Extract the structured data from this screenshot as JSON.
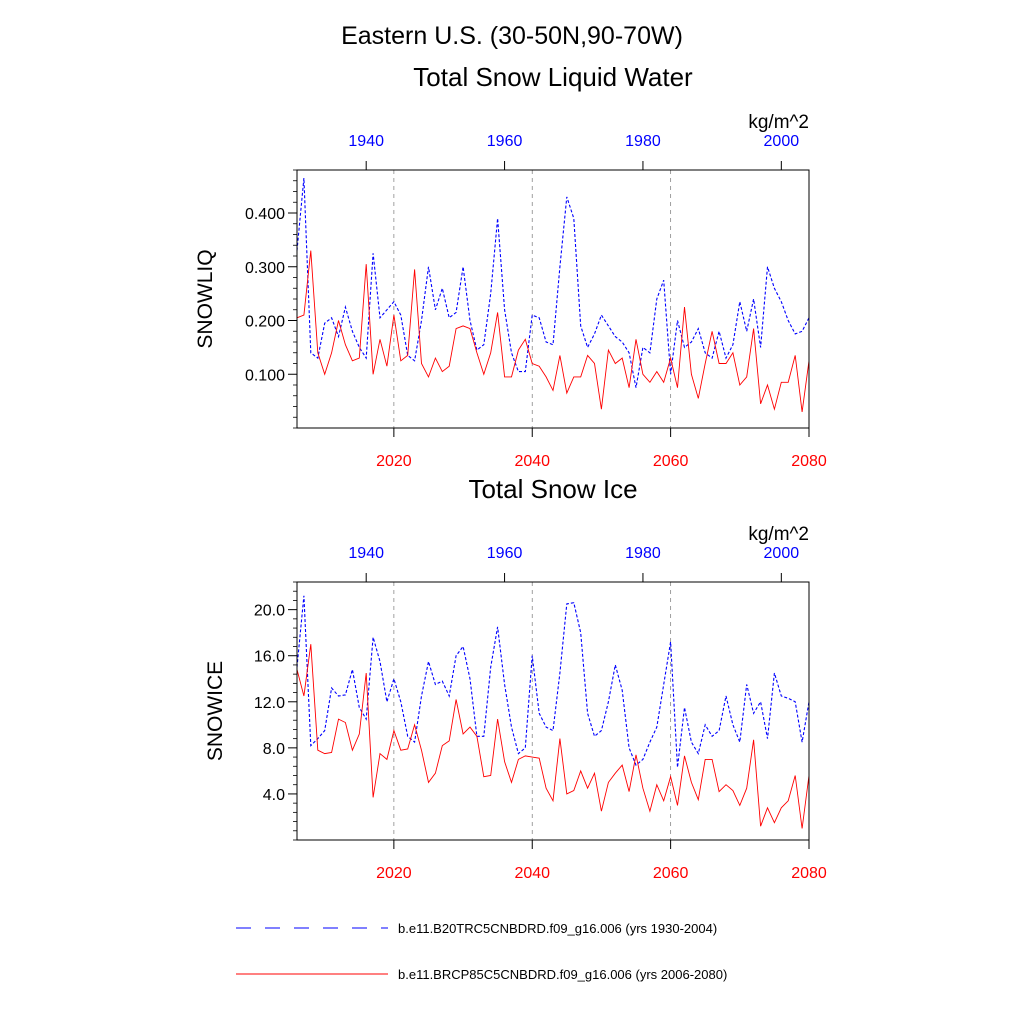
{
  "header": {
    "title": "Eastern U.S. (30-50N,90-70W)"
  },
  "legend": {
    "position": "bottom",
    "entries": [
      {
        "label": "b.e11.B20TRC5CNBDRD.f09_g16.006 (yrs 1930-2004)",
        "color": "#0000ff",
        "style": "dashed"
      },
      {
        "label": "b.e11.BRCP85C5CNBDRD.f09_g16.006 (yrs 2006-2080)",
        "color": "#ff0000",
        "style": "solid"
      }
    ]
  },
  "colors": {
    "top_axis": "#0000ff",
    "bottom_axis": "#ff0000",
    "grid": "#888888"
  },
  "chart_data": [
    {
      "type": "line",
      "title": "Total Snow Liquid Water",
      "units": "kg/m^2",
      "ylabel": "SNOWLIQ",
      "ylim": [
        0.0,
        0.48
      ],
      "yticks": [
        0.1,
        0.2,
        0.3,
        0.4
      ],
      "ytick_labels": [
        "0.100",
        "0.200",
        "0.300",
        "0.400"
      ],
      "x_bottom": {
        "range": [
          2006,
          2080
        ],
        "ticks": [
          2020,
          2040,
          2060,
          2080
        ],
        "labels": [
          "2020",
          "2040",
          "2060",
          "2080"
        ]
      },
      "x_top": {
        "range": [
          1930,
          2004
        ],
        "ticks": [
          1940,
          1960,
          1980,
          2000
        ],
        "labels": [
          "1940",
          "1960",
          "1980",
          "2000"
        ]
      },
      "grid": "vertical dashed at bottom-axis ticks",
      "series": [
        {
          "name": "b.e11.B20TRC5CNBDRD.f09_g16.006 (yrs 1930-2004)",
          "axis": "top",
          "style": "dashed",
          "color": "#0000ff",
          "values": [
            0.33,
            0.465,
            0.14,
            0.13,
            0.195,
            0.205,
            0.17,
            0.225,
            0.18,
            0.15,
            0.13,
            0.325,
            0.205,
            0.22,
            0.235,
            0.21,
            0.135,
            0.125,
            0.2,
            0.3,
            0.22,
            0.26,
            0.205,
            0.215,
            0.3,
            0.2,
            0.145,
            0.155,
            0.25,
            0.39,
            0.22,
            0.14,
            0.105,
            0.105,
            0.21,
            0.205,
            0.16,
            0.155,
            0.3,
            0.43,
            0.39,
            0.19,
            0.15,
            0.175,
            0.21,
            0.19,
            0.17,
            0.16,
            0.14,
            0.075,
            0.15,
            0.14,
            0.24,
            0.275,
            0.1,
            0.2,
            0.15,
            0.16,
            0.185,
            0.14,
            0.13,
            0.18,
            0.13,
            0.155,
            0.235,
            0.18,
            0.24,
            0.15,
            0.3,
            0.26,
            0.235,
            0.2,
            0.175,
            0.18,
            0.205
          ]
        },
        {
          "name": "b.e11.BRCP85C5CNBDRD.f09_g16.006 (yrs 2006-2080)",
          "axis": "bottom",
          "style": "solid",
          "color": "#ff0000",
          "values": [
            0.205,
            0.21,
            0.33,
            0.14,
            0.1,
            0.14,
            0.2,
            0.155,
            0.125,
            0.13,
            0.305,
            0.1,
            0.165,
            0.115,
            0.21,
            0.125,
            0.135,
            0.295,
            0.12,
            0.095,
            0.13,
            0.105,
            0.115,
            0.185,
            0.19,
            0.185,
            0.14,
            0.1,
            0.14,
            0.215,
            0.095,
            0.095,
            0.145,
            0.165,
            0.12,
            0.115,
            0.095,
            0.07,
            0.135,
            0.065,
            0.095,
            0.095,
            0.135,
            0.12,
            0.035,
            0.145,
            0.12,
            0.13,
            0.075,
            0.165,
            0.1,
            0.085,
            0.105,
            0.085,
            0.13,
            0.075,
            0.225,
            0.1,
            0.055,
            0.12,
            0.18,
            0.12,
            0.12,
            0.14,
            0.08,
            0.095,
            0.185,
            0.045,
            0.08,
            0.035,
            0.085,
            0.085,
            0.135,
            0.03,
            0.125
          ]
        }
      ]
    },
    {
      "type": "line",
      "title": "Total Snow Ice",
      "units": "kg/m^2",
      "ylabel": "SNOWICE",
      "ylim": [
        0.0,
        22.4
      ],
      "yticks": [
        4.0,
        8.0,
        12.0,
        16.0,
        20.0
      ],
      "ytick_labels": [
        "4.0",
        "8.0",
        "12.0",
        "16.0",
        "20.0"
      ],
      "x_bottom": {
        "range": [
          2006,
          2080
        ],
        "ticks": [
          2020,
          2040,
          2060,
          2080
        ],
        "labels": [
          "2020",
          "2040",
          "2060",
          "2080"
        ]
      },
      "x_top": {
        "range": [
          1930,
          2004
        ],
        "ticks": [
          1940,
          1960,
          1980,
          2000
        ],
        "labels": [
          "1940",
          "1960",
          "1980",
          "2000"
        ]
      },
      "grid": "vertical dashed at bottom-axis ticks",
      "series": [
        {
          "name": "b.e11.B20TRC5CNBDRD.f09_g16.006 (yrs 1930-2004)",
          "axis": "top",
          "style": "dashed",
          "color": "#0000ff",
          "values": [
            15.0,
            21.2,
            8.2,
            8.8,
            9.5,
            13.2,
            12.5,
            12.6,
            14.8,
            11.5,
            10.5,
            17.6,
            15.5,
            12.0,
            14.0,
            12.0,
            9.0,
            8.5,
            12.5,
            15.5,
            13.5,
            13.8,
            12.5,
            16.0,
            16.8,
            14.0,
            9.0,
            9.0,
            15.0,
            18.5,
            13.5,
            9.8,
            7.5,
            8.0,
            16.0,
            11.0,
            9.8,
            9.5,
            14.5,
            20.5,
            20.6,
            18.0,
            11.0,
            9.0,
            9.5,
            12.0,
            15.2,
            13.0,
            8.0,
            6.5,
            7.0,
            8.5,
            9.8,
            13.5,
            17.2,
            6.3,
            11.5,
            8.5,
            7.5,
            10.0,
            9.0,
            9.5,
            12.5,
            10.0,
            8.5,
            13.5,
            11.0,
            12.0,
            8.8,
            14.5,
            12.5,
            12.3,
            12.0,
            8.5,
            12.0
          ]
        },
        {
          "name": "b.e11.BRCP85C5CNBDRD.f09_g16.006 (yrs 2006-2080)",
          "axis": "bottom",
          "style": "solid",
          "color": "#ff0000",
          "values": [
            14.8,
            12.5,
            17.0,
            7.8,
            7.5,
            7.6,
            10.5,
            10.2,
            7.8,
            9.2,
            14.5,
            3.7,
            7.5,
            7.0,
            9.5,
            7.8,
            7.9,
            10.0,
            7.8,
            5.0,
            5.8,
            8.2,
            8.6,
            12.2,
            9.2,
            9.8,
            9.0,
            5.5,
            5.6,
            10.5,
            6.8,
            5.0,
            7.0,
            7.3,
            7.2,
            7.1,
            4.5,
            3.4,
            8.8,
            4.0,
            4.3,
            6.0,
            4.5,
            5.8,
            2.5,
            5.0,
            5.8,
            6.5,
            4.2,
            7.4,
            4.5,
            2.5,
            4.8,
            3.4,
            5.5,
            3.0,
            7.3,
            5.0,
            3.5,
            7.0,
            7.0,
            4.2,
            4.8,
            4.3,
            3.0,
            4.5,
            8.7,
            1.2,
            2.8,
            1.5,
            2.8,
            3.4,
            5.6,
            1.0,
            5.6
          ]
        }
      ]
    }
  ]
}
